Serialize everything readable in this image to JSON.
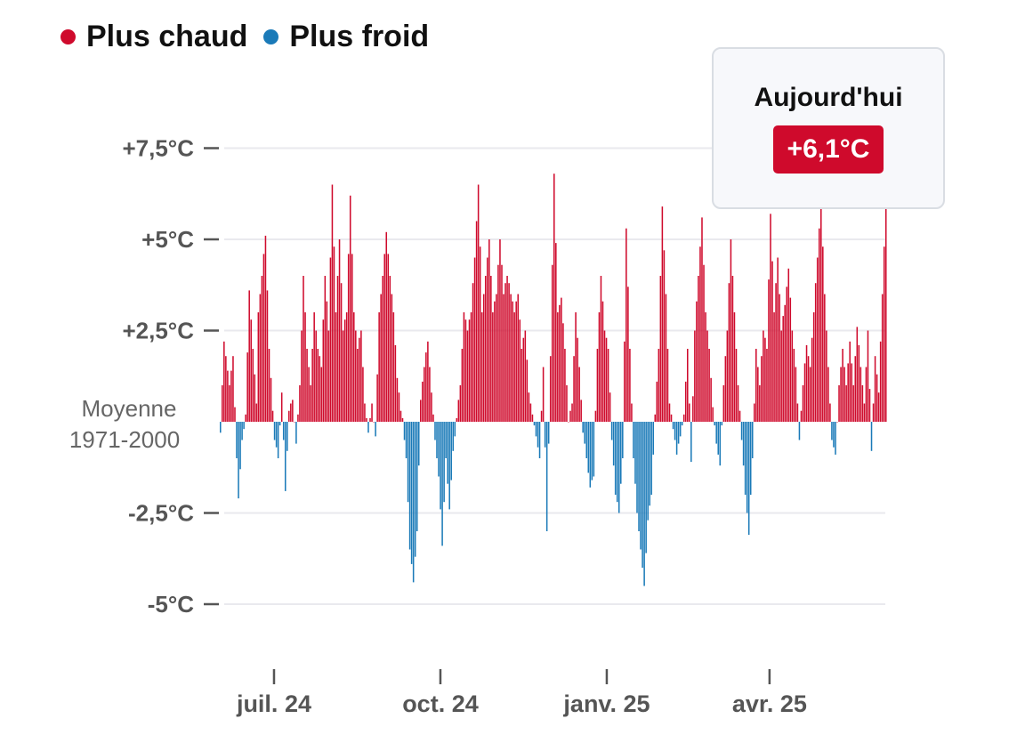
{
  "legend": {
    "warm_label": "Plus chaud",
    "cold_label": "Plus froid"
  },
  "tooltip": {
    "title": "Aujourd'hui",
    "value": "+6,1°C"
  },
  "colors": {
    "warm": "#cf0a2c",
    "cold": "#1a7ab8",
    "grid": "#e9e9ee",
    "axis_text": "#555555"
  },
  "chart_data": {
    "type": "bar",
    "baseline_label_lines": [
      "Moyenne",
      "1971-2000"
    ],
    "y_ticks": [
      {
        "value": 7.5,
        "label": "+7,5°C"
      },
      {
        "value": 5,
        "label": "+5°C"
      },
      {
        "value": 2.5,
        "label": "+2,5°C"
      },
      {
        "value": -2.5,
        "label": "-2,5°C"
      },
      {
        "value": -5,
        "label": "-5°C"
      }
    ],
    "ylim": [
      -6.3,
      8.2
    ],
    "x_start": "2024-06-01",
    "x_end": "2025-06-05",
    "x_ticks": [
      {
        "date": "2024-07-01",
        "label": "juil. 24"
      },
      {
        "date": "2024-10-01",
        "label": "oct. 24"
      },
      {
        "date": "2025-01-01",
        "label": "janv. 25"
      },
      {
        "date": "2025-04-01",
        "label": "avr. 25"
      }
    ],
    "anomaly_keyframes": [
      [
        "2024-06-01",
        -0.3
      ],
      [
        "2024-06-03",
        2.2
      ],
      [
        "2024-06-06",
        1.0
      ],
      [
        "2024-06-08",
        1.8
      ],
      [
        "2024-06-10",
        -1.0
      ],
      [
        "2024-06-11",
        -2.1
      ],
      [
        "2024-06-13",
        -0.5
      ],
      [
        "2024-06-15",
        0.2
      ],
      [
        "2024-06-17",
        3.6
      ],
      [
        "2024-06-19",
        2.0
      ],
      [
        "2024-06-21",
        0.5
      ],
      [
        "2024-06-22",
        3.0
      ],
      [
        "2024-06-24",
        4.0
      ],
      [
        "2024-06-26",
        5.1
      ],
      [
        "2024-06-28",
        2.0
      ],
      [
        "2024-06-30",
        0.3
      ],
      [
        "2024-07-01",
        -0.5
      ],
      [
        "2024-07-03",
        -1.0
      ],
      [
        "2024-07-05",
        0.8
      ],
      [
        "2024-07-07",
        -1.9
      ],
      [
        "2024-07-09",
        0.3
      ],
      [
        "2024-07-11",
        0.6
      ],
      [
        "2024-07-13",
        -0.6
      ],
      [
        "2024-07-15",
        1.0
      ],
      [
        "2024-07-17",
        4.0
      ],
      [
        "2024-07-19",
        2.0
      ],
      [
        "2024-07-21",
        1.0
      ],
      [
        "2024-07-23",
        3.0
      ],
      [
        "2024-07-25",
        2.0
      ],
      [
        "2024-07-27",
        1.5
      ],
      [
        "2024-07-29",
        4.0
      ],
      [
        "2024-07-31",
        2.5
      ],
      [
        "2024-08-02",
        6.5
      ],
      [
        "2024-08-04",
        3.0
      ],
      [
        "2024-08-06",
        5.0
      ],
      [
        "2024-08-08",
        2.5
      ],
      [
        "2024-08-10",
        3.0
      ],
      [
        "2024-08-12",
        6.2
      ],
      [
        "2024-08-14",
        3.0
      ],
      [
        "2024-08-16",
        2.0
      ],
      [
        "2024-08-18",
        2.5
      ],
      [
        "2024-08-20",
        0.5
      ],
      [
        "2024-08-22",
        -0.3
      ],
      [
        "2024-08-24",
        0.5
      ],
      [
        "2024-08-26",
        -0.4
      ],
      [
        "2024-08-28",
        3.0
      ],
      [
        "2024-08-30",
        4.0
      ],
      [
        "2024-09-01",
        5.2
      ],
      [
        "2024-09-03",
        4.0
      ],
      [
        "2024-09-05",
        3.0
      ],
      [
        "2024-09-07",
        1.2
      ],
      [
        "2024-09-09",
        0.3
      ],
      [
        "2024-09-10",
        0.1
      ],
      [
        "2024-09-12",
        -1.0
      ],
      [
        "2024-09-14",
        -3.5
      ],
      [
        "2024-09-16",
        -4.4
      ],
      [
        "2024-09-18",
        -3.0
      ],
      [
        "2024-09-20",
        0.6
      ],
      [
        "2024-09-22",
        1.5
      ],
      [
        "2024-09-24",
        2.2
      ],
      [
        "2024-09-26",
        0.8
      ],
      [
        "2024-09-28",
        -0.5
      ],
      [
        "2024-09-30",
        -1.5
      ],
      [
        "2024-10-02",
        -3.4
      ],
      [
        "2024-10-04",
        -1.0
      ],
      [
        "2024-10-06",
        -2.4
      ],
      [
        "2024-10-08",
        -0.8
      ],
      [
        "2024-10-10",
        0.1
      ],
      [
        "2024-10-12",
        1.0
      ],
      [
        "2024-10-14",
        3.0
      ],
      [
        "2024-10-16",
        2.5
      ],
      [
        "2024-10-18",
        3.0
      ],
      [
        "2024-10-20",
        4.5
      ],
      [
        "2024-10-22",
        6.5
      ],
      [
        "2024-10-24",
        3.0
      ],
      [
        "2024-10-26",
        4.0
      ],
      [
        "2024-10-28",
        5.0
      ],
      [
        "2024-10-30",
        3.0
      ],
      [
        "2024-11-01",
        3.5
      ],
      [
        "2024-11-03",
        5.0
      ],
      [
        "2024-11-05",
        3.5
      ],
      [
        "2024-11-07",
        4.0
      ],
      [
        "2024-11-09",
        3.5
      ],
      [
        "2024-11-11",
        3.0
      ],
      [
        "2024-11-13",
        3.5
      ],
      [
        "2024-11-15",
        2.0
      ],
      [
        "2024-11-17",
        2.5
      ],
      [
        "2024-11-19",
        0.8
      ],
      [
        "2024-11-21",
        0.2
      ],
      [
        "2024-11-23",
        -0.4
      ],
      [
        "2024-11-25",
        -1.0
      ],
      [
        "2024-11-27",
        1.5
      ],
      [
        "2024-11-29",
        -3.0
      ],
      [
        "2024-12-01",
        1.8
      ],
      [
        "2024-12-03",
        6.8
      ],
      [
        "2024-12-05",
        3.0
      ],
      [
        "2024-12-07",
        3.4
      ],
      [
        "2024-12-09",
        2.0
      ],
      [
        "2024-12-11",
        0.0
      ],
      [
        "2024-12-13",
        0.5
      ],
      [
        "2024-12-15",
        3.0
      ],
      [
        "2024-12-17",
        1.5
      ],
      [
        "2024-12-19",
        -0.3
      ],
      [
        "2024-12-21",
        -1.0
      ],
      [
        "2024-12-23",
        -1.8
      ],
      [
        "2024-12-25",
        -1.5
      ],
      [
        "2024-12-27",
        2.0
      ],
      [
        "2024-12-29",
        4.0
      ],
      [
        "2024-12-31",
        2.5
      ],
      [
        "2025-01-02",
        2.0
      ],
      [
        "2025-01-04",
        -0.5
      ],
      [
        "2025-01-06",
        -2.0
      ],
      [
        "2025-01-08",
        -2.5
      ],
      [
        "2025-01-10",
        -1.0
      ],
      [
        "2025-01-12",
        5.3
      ],
      [
        "2025-01-14",
        2.0
      ],
      [
        "2025-01-16",
        -1.0
      ],
      [
        "2025-01-18",
        -2.5
      ],
      [
        "2025-01-20",
        -3.5
      ],
      [
        "2025-01-22",
        -4.5
      ],
      [
        "2025-01-24",
        -2.7
      ],
      [
        "2025-01-26",
        -2.0
      ],
      [
        "2025-01-28",
        0.2
      ],
      [
        "2025-01-30",
        2.0
      ],
      [
        "2025-02-01",
        5.9
      ],
      [
        "2025-02-03",
        3.5
      ],
      [
        "2025-02-05",
        0.5
      ],
      [
        "2025-02-07",
        -0.2
      ],
      [
        "2025-02-09",
        -0.9
      ],
      [
        "2025-02-11",
        -0.4
      ],
      [
        "2025-02-13",
        0.2
      ],
      [
        "2025-02-15",
        2.0
      ],
      [
        "2025-02-17",
        -1.1
      ],
      [
        "2025-02-19",
        2.5
      ],
      [
        "2025-02-21",
        4.0
      ],
      [
        "2025-02-23",
        5.6
      ],
      [
        "2025-02-25",
        3.0
      ],
      [
        "2025-02-27",
        2.0
      ],
      [
        "2025-03-01",
        0.4
      ],
      [
        "2025-03-03",
        -0.6
      ],
      [
        "2025-03-05",
        -1.2
      ],
      [
        "2025-03-07",
        1.0
      ],
      [
        "2025-03-09",
        2.5
      ],
      [
        "2025-03-11",
        5.0
      ],
      [
        "2025-03-13",
        3.0
      ],
      [
        "2025-03-15",
        1.0
      ],
      [
        "2025-03-17",
        -0.5
      ],
      [
        "2025-03-19",
        -2.0
      ],
      [
        "2025-03-21",
        -3.1
      ],
      [
        "2025-03-23",
        -1.0
      ],
      [
        "2025-03-25",
        2.0
      ],
      [
        "2025-03-27",
        1.0
      ],
      [
        "2025-03-29",
        2.5
      ],
      [
        "2025-03-31",
        2.0
      ],
      [
        "2025-04-02",
        5.7
      ],
      [
        "2025-04-04",
        3.0
      ],
      [
        "2025-04-06",
        4.5
      ],
      [
        "2025-04-08",
        2.5
      ],
      [
        "2025-04-10",
        3.2
      ],
      [
        "2025-04-12",
        4.2
      ],
      [
        "2025-04-14",
        2.5
      ],
      [
        "2025-04-16",
        1.5
      ],
      [
        "2025-04-18",
        -0.5
      ],
      [
        "2025-04-20",
        1.0
      ],
      [
        "2025-04-22",
        2.1
      ],
      [
        "2025-04-24",
        1.5
      ],
      [
        "2025-04-26",
        3.0
      ],
      [
        "2025-04-28",
        4.5
      ],
      [
        "2025-04-30",
        6.0
      ],
      [
        "2025-05-02",
        3.5
      ],
      [
        "2025-05-04",
        1.5
      ],
      [
        "2025-05-06",
        -0.5
      ],
      [
        "2025-05-08",
        -0.9
      ],
      [
        "2025-05-10",
        1.0
      ],
      [
        "2025-05-12",
        2.0
      ],
      [
        "2025-05-14",
        1.0
      ],
      [
        "2025-05-16",
        2.2
      ],
      [
        "2025-05-18",
        1.0
      ],
      [
        "2025-05-20",
        2.6
      ],
      [
        "2025-05-22",
        1.5
      ],
      [
        "2025-05-24",
        0.5
      ],
      [
        "2025-05-26",
        2.5
      ],
      [
        "2025-05-28",
        -0.8
      ],
      [
        "2025-05-30",
        1.8
      ],
      [
        "2025-06-01",
        0.8
      ],
      [
        "2025-06-03",
        3.5
      ],
      [
        "2025-06-05",
        6.1
      ]
    ]
  }
}
